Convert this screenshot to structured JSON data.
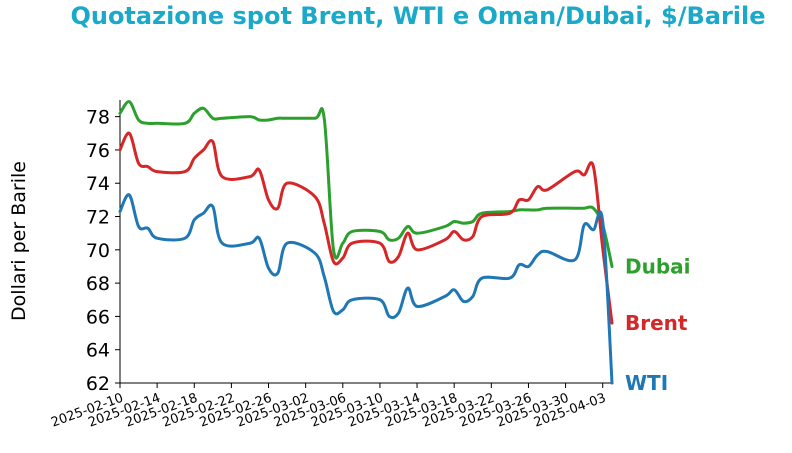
{
  "chart_data": {
    "type": "line",
    "title": "Quotazione spot Brent, WTI e Oman/Dubai, $/Barile",
    "title_color": "#1aa9c9",
    "xlabel": "",
    "ylabel": "Dollari per Barile",
    "ylim": [
      62,
      79
    ],
    "yticks": [
      "62",
      "64",
      "66",
      "68",
      "70",
      "72",
      "74",
      "76",
      "78"
    ],
    "xlim": [
      "2025-02-10",
      "2025-04-04"
    ],
    "xticks": [
      "2025-02-10",
      "2025-02-14",
      "2025-02-18",
      "2025-02-22",
      "2025-02-26",
      "2025-03-02",
      "2025-03-06",
      "2025-03-10",
      "2025-03-14",
      "2025-03-18",
      "2025-03-22",
      "2025-03-26",
      "2025-03-30",
      "2025-04-03"
    ],
    "grid": false,
    "legend": "inline labels at line ends (right)",
    "series": [
      {
        "name": "Dubai",
        "color": "#2ca02c",
        "points": [
          [
            "2025-02-10",
            78.2
          ],
          [
            "2025-02-11",
            78.9
          ],
          [
            "2025-02-12",
            77.8
          ],
          [
            "2025-02-13",
            77.6
          ],
          [
            "2025-02-14",
            77.6
          ],
          [
            "2025-02-17",
            77.6
          ],
          [
            "2025-02-18",
            78.2
          ],
          [
            "2025-02-19",
            78.5
          ],
          [
            "2025-02-20",
            77.9
          ],
          [
            "2025-02-21",
            77.9
          ],
          [
            "2025-02-24",
            78.0
          ],
          [
            "2025-02-25",
            77.8
          ],
          [
            "2025-02-26",
            77.8
          ],
          [
            "2025-02-27",
            77.9
          ],
          [
            "2025-02-28",
            77.9
          ],
          [
            "2025-03-03",
            77.9
          ],
          [
            "2025-03-04",
            77.9
          ],
          [
            "2025-03-05",
            70.0
          ],
          [
            "2025-03-06",
            70.4
          ],
          [
            "2025-03-07",
            71.1
          ],
          [
            "2025-03-10",
            71.1
          ],
          [
            "2025-03-11",
            70.6
          ],
          [
            "2025-03-12",
            70.7
          ],
          [
            "2025-03-13",
            71.4
          ],
          [
            "2025-03-14",
            71.0
          ],
          [
            "2025-03-17",
            71.4
          ],
          [
            "2025-03-18",
            71.7
          ],
          [
            "2025-03-19",
            71.6
          ],
          [
            "2025-03-20",
            71.7
          ],
          [
            "2025-03-21",
            72.2
          ],
          [
            "2025-03-24",
            72.3
          ],
          [
            "2025-03-25",
            72.4
          ],
          [
            "2025-03-26",
            72.4
          ],
          [
            "2025-03-27",
            72.4
          ],
          [
            "2025-03-28",
            72.5
          ],
          [
            "2025-03-31",
            72.5
          ],
          [
            "2025-04-01",
            72.5
          ],
          [
            "2025-04-02",
            72.5
          ],
          [
            "2025-04-03",
            71.5
          ],
          [
            "2025-04-04",
            69.0
          ]
        ]
      },
      {
        "name": "Brent",
        "color": "#d62728",
        "points": [
          [
            "2025-02-10",
            76.0
          ],
          [
            "2025-02-11",
            77.0
          ],
          [
            "2025-02-12",
            75.2
          ],
          [
            "2025-02-13",
            75.0
          ],
          [
            "2025-02-14",
            74.7
          ],
          [
            "2025-02-17",
            74.7
          ],
          [
            "2025-02-18",
            75.5
          ],
          [
            "2025-02-19",
            76.0
          ],
          [
            "2025-02-20",
            76.5
          ],
          [
            "2025-02-21",
            74.4
          ],
          [
            "2025-02-24",
            74.4
          ],
          [
            "2025-02-25",
            74.8
          ],
          [
            "2025-02-26",
            73.0
          ],
          [
            "2025-02-27",
            72.5
          ],
          [
            "2025-02-28",
            74.0
          ],
          [
            "2025-03-03",
            73.2
          ],
          [
            "2025-03-04",
            71.6
          ],
          [
            "2025-03-05",
            69.3
          ],
          [
            "2025-03-06",
            69.5
          ],
          [
            "2025-03-07",
            70.4
          ],
          [
            "2025-03-10",
            70.4
          ],
          [
            "2025-03-11",
            69.3
          ],
          [
            "2025-03-12",
            69.6
          ],
          [
            "2025-03-13",
            71.0
          ],
          [
            "2025-03-14",
            70.0
          ],
          [
            "2025-03-17",
            70.6
          ],
          [
            "2025-03-18",
            71.1
          ],
          [
            "2025-03-19",
            70.6
          ],
          [
            "2025-03-20",
            70.8
          ],
          [
            "2025-03-21",
            72.0
          ],
          [
            "2025-03-24",
            72.2
          ],
          [
            "2025-03-25",
            73.0
          ],
          [
            "2025-03-26",
            73.0
          ],
          [
            "2025-03-27",
            73.8
          ],
          [
            "2025-03-28",
            73.6
          ],
          [
            "2025-03-31",
            74.7
          ],
          [
            "2025-04-01",
            74.5
          ],
          [
            "2025-04-02",
            75.0
          ],
          [
            "2025-04-03",
            70.1
          ],
          [
            "2025-04-04",
            65.6
          ]
        ]
      },
      {
        "name": "WTI",
        "color": "#1f77b4",
        "points": [
          [
            "2025-02-10",
            72.3
          ],
          [
            "2025-02-11",
            73.3
          ],
          [
            "2025-02-12",
            71.4
          ],
          [
            "2025-02-13",
            71.3
          ],
          [
            "2025-02-14",
            70.7
          ],
          [
            "2025-02-17",
            70.7
          ],
          [
            "2025-02-18",
            71.8
          ],
          [
            "2025-02-19",
            72.2
          ],
          [
            "2025-02-20",
            72.6
          ],
          [
            "2025-02-21",
            70.4
          ],
          [
            "2025-02-24",
            70.4
          ],
          [
            "2025-02-25",
            70.7
          ],
          [
            "2025-02-26",
            68.9
          ],
          [
            "2025-02-27",
            68.6
          ],
          [
            "2025-02-28",
            70.4
          ],
          [
            "2025-03-03",
            69.8
          ],
          [
            "2025-03-04",
            68.4
          ],
          [
            "2025-03-05",
            66.3
          ],
          [
            "2025-03-06",
            66.4
          ],
          [
            "2025-03-07",
            67.0
          ],
          [
            "2025-03-10",
            67.0
          ],
          [
            "2025-03-11",
            66.0
          ],
          [
            "2025-03-12",
            66.2
          ],
          [
            "2025-03-13",
            67.7
          ],
          [
            "2025-03-14",
            66.6
          ],
          [
            "2025-03-17",
            67.2
          ],
          [
            "2025-03-18",
            67.6
          ],
          [
            "2025-03-19",
            66.9
          ],
          [
            "2025-03-20",
            67.2
          ],
          [
            "2025-03-21",
            68.3
          ],
          [
            "2025-03-24",
            68.3
          ],
          [
            "2025-03-25",
            69.1
          ],
          [
            "2025-03-26",
            69.0
          ],
          [
            "2025-03-27",
            69.7
          ],
          [
            "2025-03-28",
            69.9
          ],
          [
            "2025-03-31",
            69.4
          ],
          [
            "2025-04-01",
            71.5
          ],
          [
            "2025-04-02",
            71.2
          ],
          [
            "2025-04-03",
            71.7
          ],
          [
            "2025-04-04",
            62.0
          ]
        ]
      }
    ]
  }
}
